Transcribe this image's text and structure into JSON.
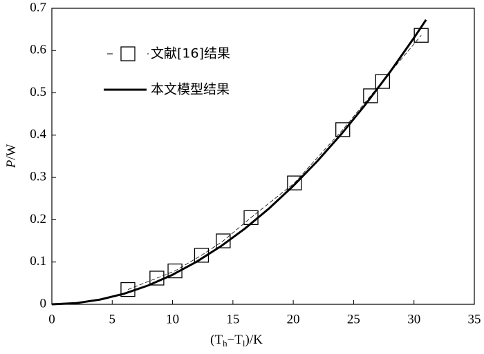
{
  "chart_data": {
    "type": "line",
    "x_label": [
      "(T",
      "h",
      "−T",
      "l",
      ")/K"
    ],
    "y_label": [
      "P",
      "/W"
    ],
    "xlim": [
      0,
      35
    ],
    "xticks": [
      0,
      5,
      10,
      15,
      20,
      25,
      30,
      35
    ],
    "ylim": [
      0,
      0.7
    ],
    "yticks": [
      0,
      0.1,
      0.2,
      0.3,
      0.4,
      0.5,
      0.6,
      0.7
    ],
    "legend": "upper left",
    "series": [
      {
        "name": "文献[16]结果",
        "color": "#000000",
        "style": "dashed-squares",
        "x": [
          6.3,
          8.7,
          10.2,
          12.4,
          14.2,
          16.5,
          20.1,
          24.1,
          26.4,
          27.4,
          30.6
        ],
        "values": [
          0.035,
          0.062,
          0.079,
          0.116,
          0.15,
          0.205,
          0.287,
          0.413,
          0.493,
          0.527,
          0.636
        ]
      },
      {
        "name": "本文模型结果",
        "color": "#000000",
        "style": "solid",
        "x": [
          0,
          2,
          4,
          6,
          8,
          10,
          12,
          14,
          16,
          18,
          20,
          22,
          24,
          26,
          28,
          30,
          31
        ],
        "values": [
          0,
          0.0028,
          0.0112,
          0.0252,
          0.0448,
          0.07,
          0.1008,
          0.1372,
          0.1792,
          0.2268,
          0.28,
          0.3388,
          0.4032,
          0.4732,
          0.5488,
          0.63,
          0.6727
        ]
      }
    ]
  }
}
